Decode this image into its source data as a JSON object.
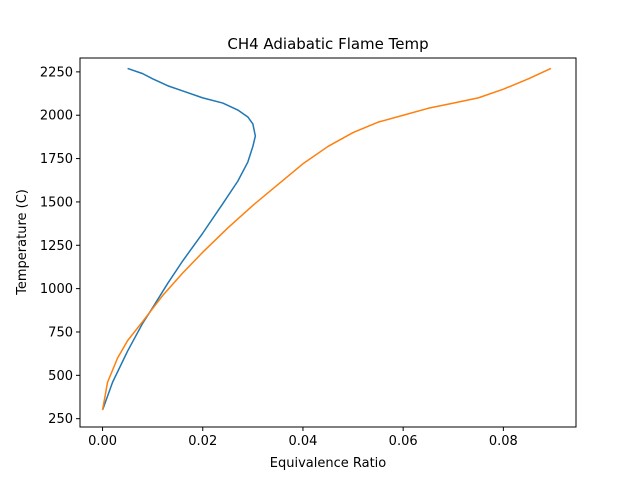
{
  "chart_data": {
    "type": "line",
    "title": "CH4 Adiabatic Flame Temp",
    "xlabel": "Equivalence Ratio",
    "ylabel": "Temperature (C)",
    "xlim": [
      -0.0045,
      0.0945
    ],
    "ylim": [
      202,
      2330
    ],
    "xticks": [
      0.0,
      0.02,
      0.04,
      0.06,
      0.08
    ],
    "xtick_labels": [
      "0.00",
      "0.02",
      "0.04",
      "0.06",
      "0.08"
    ],
    "yticks": [
      250,
      500,
      750,
      1000,
      1250,
      1500,
      1750,
      2000,
      2250
    ],
    "ytick_labels": [
      "250",
      "500",
      "750",
      "1000",
      "1250",
      "1500",
      "1750",
      "2000",
      "2250"
    ],
    "grid": false,
    "series": [
      {
        "color": "#1f77b4",
        "x": [
          0.0,
          0.002,
          0.005,
          0.008,
          0.01,
          0.013,
          0.016,
          0.02,
          0.024,
          0.027,
          0.029,
          0.03,
          0.0305,
          0.03,
          0.029,
          0.027,
          0.024,
          0.02,
          0.016,
          0.013,
          0.01,
          0.008,
          0.005
        ],
        "y": [
          300,
          460,
          640,
          800,
          890,
          1030,
          1160,
          1320,
          1490,
          1620,
          1730,
          1820,
          1880,
          1950,
          1990,
          2030,
          2070,
          2100,
          2140,
          2170,
          2210,
          2240,
          2270
        ]
      },
      {
        "color": "#ff7f0e",
        "x": [
          0.0,
          0.001,
          0.003,
          0.005,
          0.008,
          0.012,
          0.016,
          0.02,
          0.025,
          0.03,
          0.035,
          0.04,
          0.045,
          0.05,
          0.055,
          0.06,
          0.065,
          0.07,
          0.075,
          0.08,
          0.085,
          0.0895
        ],
        "y": [
          300,
          460,
          600,
          700,
          810,
          960,
          1090,
          1210,
          1350,
          1480,
          1600,
          1720,
          1820,
          1900,
          1960,
          2000,
          2040,
          2070,
          2100,
          2150,
          2210,
          2270
        ]
      }
    ]
  }
}
